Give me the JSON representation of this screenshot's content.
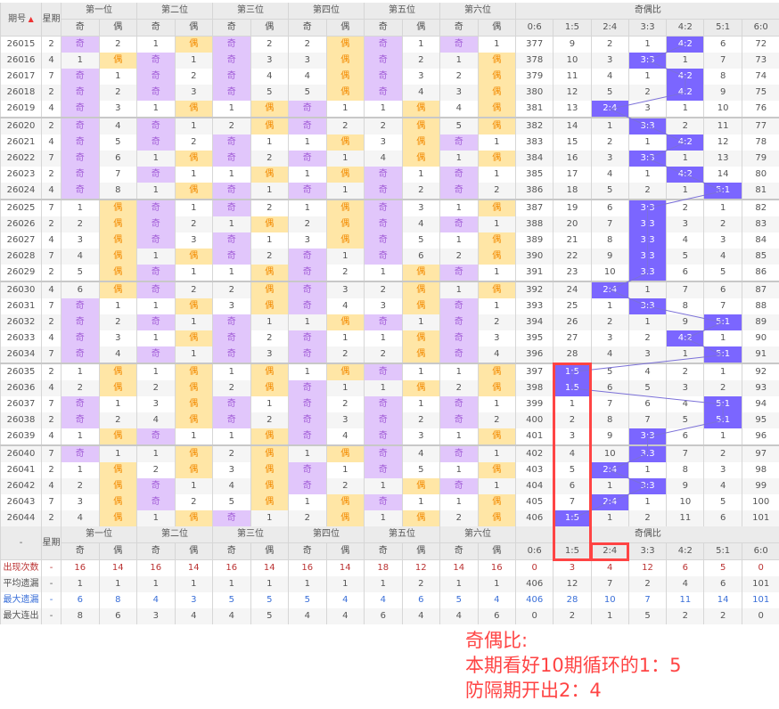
{
  "header": {
    "issue": "期号",
    "weekday": "星期",
    "positions": [
      "第一位",
      "第二位",
      "第三位",
      "第四位",
      "第五位",
      "第六位"
    ],
    "odd": "奇",
    "even": "偶",
    "ratio_title": "奇偶比",
    "ratios": [
      "0:6",
      "1:5",
      "2:4",
      "3:3",
      "4:2",
      "5:1",
      "6:0"
    ],
    "footer_first": "-"
  },
  "colors": {
    "odd_bg": "#e1c6fb",
    "even_bg": "#ffe6a6",
    "hit_bg": "#7b66ff",
    "annotation": "#ff4444"
  },
  "rows": [
    {
      "id": "26015",
      "wd": "2",
      "pos": [
        "奇",
        "2",
        "1",
        "偶",
        "奇",
        "2",
        "2",
        "偶",
        "奇",
        "1",
        "奇",
        "1"
      ],
      "ratio": [
        "377",
        "9",
        "2",
        "1",
        "4:2",
        "6",
        "72"
      ]
    },
    {
      "id": "26016",
      "wd": "4",
      "pos": [
        "1",
        "偶",
        "奇",
        "1",
        "奇",
        "3",
        "3",
        "偶",
        "奇",
        "2",
        "1",
        "偶"
      ],
      "ratio": [
        "378",
        "10",
        "3",
        "3:3",
        "1",
        "7",
        "73"
      ]
    },
    {
      "id": "26017",
      "wd": "7",
      "pos": [
        "奇",
        "1",
        "奇",
        "2",
        "奇",
        "4",
        "4",
        "偶",
        "奇",
        "3",
        "2",
        "偶"
      ],
      "ratio": [
        "379",
        "11",
        "4",
        "1",
        "4:2",
        "8",
        "74"
      ]
    },
    {
      "id": "26018",
      "wd": "2",
      "pos": [
        "奇",
        "2",
        "奇",
        "3",
        "奇",
        "5",
        "5",
        "偶",
        "奇",
        "4",
        "3",
        "偶"
      ],
      "ratio": [
        "380",
        "12",
        "5",
        "2",
        "4:2",
        "9",
        "75"
      ]
    },
    {
      "id": "26019",
      "wd": "4",
      "pos": [
        "奇",
        "3",
        "1",
        "偶",
        "1",
        "偶",
        "奇",
        "1",
        "1",
        "偶",
        "4",
        "偶"
      ],
      "ratio": [
        "381",
        "13",
        "2:4",
        "3",
        "1",
        "10",
        "76"
      ]
    },
    {
      "id": "26020",
      "wd": "2",
      "pos": [
        "奇",
        "4",
        "奇",
        "1",
        "2",
        "偶",
        "奇",
        "2",
        "2",
        "偶",
        "5",
        "偶"
      ],
      "ratio": [
        "382",
        "14",
        "1",
        "3:3",
        "2",
        "11",
        "77"
      ]
    },
    {
      "id": "26021",
      "wd": "4",
      "pos": [
        "奇",
        "5",
        "奇",
        "2",
        "奇",
        "1",
        "1",
        "偶",
        "3",
        "偶",
        "奇",
        "1"
      ],
      "ratio": [
        "383",
        "15",
        "2",
        "1",
        "4:2",
        "12",
        "78"
      ]
    },
    {
      "id": "26022",
      "wd": "7",
      "pos": [
        "奇",
        "6",
        "1",
        "偶",
        "奇",
        "2",
        "奇",
        "1",
        "4",
        "偶",
        "1",
        "偶"
      ],
      "ratio": [
        "384",
        "16",
        "3",
        "3:3",
        "1",
        "13",
        "79"
      ]
    },
    {
      "id": "26023",
      "wd": "2",
      "pos": [
        "奇",
        "7",
        "奇",
        "1",
        "1",
        "偶",
        "1",
        "偶",
        "奇",
        "1",
        "奇",
        "1"
      ],
      "ratio": [
        "385",
        "17",
        "4",
        "1",
        "4:2",
        "14",
        "80"
      ]
    },
    {
      "id": "26024",
      "wd": "4",
      "pos": [
        "奇",
        "8",
        "1",
        "偶",
        "奇",
        "1",
        "奇",
        "1",
        "奇",
        "2",
        "奇",
        "2"
      ],
      "ratio": [
        "386",
        "18",
        "5",
        "2",
        "1",
        "5:1",
        "81"
      ]
    },
    {
      "id": "26025",
      "wd": "7",
      "pos": [
        "1",
        "偶",
        "奇",
        "1",
        "奇",
        "2",
        "1",
        "偶",
        "奇",
        "3",
        "1",
        "偶"
      ],
      "ratio": [
        "387",
        "19",
        "6",
        "3:3",
        "2",
        "1",
        "82"
      ]
    },
    {
      "id": "26026",
      "wd": "2",
      "pos": [
        "2",
        "偶",
        "奇",
        "2",
        "1",
        "偶",
        "2",
        "偶",
        "奇",
        "4",
        "奇",
        "1"
      ],
      "ratio": [
        "388",
        "20",
        "7",
        "3:3",
        "3",
        "2",
        "83"
      ]
    },
    {
      "id": "26027",
      "wd": "4",
      "pos": [
        "3",
        "偶",
        "奇",
        "3",
        "奇",
        "1",
        "3",
        "偶",
        "奇",
        "5",
        "1",
        "偶"
      ],
      "ratio": [
        "389",
        "21",
        "8",
        "3:3",
        "4",
        "3",
        "84"
      ]
    },
    {
      "id": "26028",
      "wd": "7",
      "pos": [
        "4",
        "偶",
        "1",
        "偶",
        "奇",
        "2",
        "奇",
        "1",
        "奇",
        "6",
        "2",
        "偶"
      ],
      "ratio": [
        "390",
        "22",
        "9",
        "3:3",
        "5",
        "4",
        "85"
      ]
    },
    {
      "id": "26029",
      "wd": "2",
      "pos": [
        "5",
        "偶",
        "奇",
        "1",
        "1",
        "偶",
        "奇",
        "2",
        "1",
        "偶",
        "奇",
        "1"
      ],
      "ratio": [
        "391",
        "23",
        "10",
        "3:3",
        "6",
        "5",
        "86"
      ]
    },
    {
      "id": "26030",
      "wd": "4",
      "pos": [
        "6",
        "偶",
        "奇",
        "2",
        "2",
        "偶",
        "奇",
        "3",
        "2",
        "偶",
        "1",
        "偶"
      ],
      "ratio": [
        "392",
        "24",
        "2:4",
        "1",
        "7",
        "6",
        "87"
      ]
    },
    {
      "id": "26031",
      "wd": "7",
      "pos": [
        "奇",
        "1",
        "1",
        "偶",
        "3",
        "偶",
        "奇",
        "4",
        "3",
        "偶",
        "奇",
        "1"
      ],
      "ratio": [
        "393",
        "25",
        "1",
        "3:3",
        "8",
        "7",
        "88"
      ]
    },
    {
      "id": "26032",
      "wd": "2",
      "pos": [
        "奇",
        "2",
        "奇",
        "1",
        "奇",
        "1",
        "1",
        "偶",
        "奇",
        "1",
        "奇",
        "2"
      ],
      "ratio": [
        "394",
        "26",
        "2",
        "1",
        "9",
        "5:1",
        "89"
      ]
    },
    {
      "id": "26033",
      "wd": "4",
      "pos": [
        "奇",
        "3",
        "1",
        "偶",
        "奇",
        "2",
        "奇",
        "1",
        "1",
        "偶",
        "奇",
        "3"
      ],
      "ratio": [
        "395",
        "27",
        "3",
        "2",
        "4:2",
        "1",
        "90"
      ]
    },
    {
      "id": "26034",
      "wd": "7",
      "pos": [
        "奇",
        "4",
        "奇",
        "1",
        "奇",
        "3",
        "奇",
        "2",
        "2",
        "偶",
        "奇",
        "4"
      ],
      "ratio": [
        "396",
        "28",
        "4",
        "3",
        "1",
        "5:1",
        "91"
      ]
    },
    {
      "id": "26035",
      "wd": "2",
      "pos": [
        "1",
        "偶",
        "1",
        "偶",
        "1",
        "偶",
        "1",
        "偶",
        "奇",
        "1",
        "1",
        "偶"
      ],
      "ratio": [
        "397",
        "1:5",
        "5",
        "4",
        "2",
        "1",
        "92"
      ]
    },
    {
      "id": "26036",
      "wd": "4",
      "pos": [
        "2",
        "偶",
        "2",
        "偶",
        "2",
        "偶",
        "奇",
        "1",
        "1",
        "偶",
        "2",
        "偶"
      ],
      "ratio": [
        "398",
        "1:5",
        "6",
        "5",
        "3",
        "2",
        "93"
      ]
    },
    {
      "id": "26037",
      "wd": "7",
      "pos": [
        "奇",
        "1",
        "3",
        "偶",
        "奇",
        "1",
        "奇",
        "2",
        "奇",
        "1",
        "奇",
        "1"
      ],
      "ratio": [
        "399",
        "1",
        "7",
        "6",
        "4",
        "5:1",
        "94"
      ]
    },
    {
      "id": "26038",
      "wd": "2",
      "pos": [
        "奇",
        "2",
        "4",
        "偶",
        "奇",
        "2",
        "奇",
        "3",
        "奇",
        "2",
        "奇",
        "2"
      ],
      "ratio": [
        "400",
        "2",
        "8",
        "7",
        "5",
        "5:1",
        "95"
      ]
    },
    {
      "id": "26039",
      "wd": "4",
      "pos": [
        "1",
        "偶",
        "奇",
        "1",
        "1",
        "偶",
        "奇",
        "4",
        "奇",
        "3",
        "1",
        "偶"
      ],
      "ratio": [
        "401",
        "3",
        "9",
        "3:3",
        "6",
        "1",
        "96"
      ]
    },
    {
      "id": "26040",
      "wd": "7",
      "pos": [
        "奇",
        "1",
        "1",
        "偶",
        "2",
        "偶",
        "1",
        "偶",
        "奇",
        "4",
        "奇",
        "1"
      ],
      "ratio": [
        "402",
        "4",
        "10",
        "3:3",
        "7",
        "2",
        "97"
      ]
    },
    {
      "id": "26041",
      "wd": "2",
      "pos": [
        "1",
        "偶",
        "2",
        "偶",
        "3",
        "偶",
        "奇",
        "1",
        "奇",
        "5",
        "1",
        "偶"
      ],
      "ratio": [
        "403",
        "5",
        "2:4",
        "1",
        "8",
        "3",
        "98"
      ]
    },
    {
      "id": "26042",
      "wd": "4",
      "pos": [
        "2",
        "偶",
        "奇",
        "1",
        "4",
        "偶",
        "奇",
        "2",
        "1",
        "偶",
        "奇",
        "1"
      ],
      "ratio": [
        "404",
        "6",
        "1",
        "3:3",
        "9",
        "4",
        "99"
      ]
    },
    {
      "id": "26043",
      "wd": "7",
      "pos": [
        "3",
        "偶",
        "奇",
        "2",
        "5",
        "偶",
        "1",
        "偶",
        "奇",
        "1",
        "1",
        "偶"
      ],
      "ratio": [
        "405",
        "7",
        "2:4",
        "1",
        "10",
        "5",
        "100"
      ]
    },
    {
      "id": "26044",
      "wd": "2",
      "pos": [
        "4",
        "偶",
        "1",
        "偶",
        "奇",
        "1",
        "2",
        "偶",
        "1",
        "偶",
        "2",
        "偶"
      ],
      "ratio": [
        "406",
        "1:5",
        "1",
        "2",
        "11",
        "6",
        "101"
      ]
    }
  ],
  "stats": [
    {
      "label": "出现次数",
      "wd": "-",
      "values": [
        "16",
        "14",
        "16",
        "14",
        "16",
        "14",
        "16",
        "14",
        "18",
        "12",
        "14",
        "16",
        "0",
        "3",
        "4",
        "12",
        "6",
        "5",
        "0"
      ]
    },
    {
      "label": "平均遗漏",
      "wd": "-",
      "values": [
        "1",
        "1",
        "1",
        "1",
        "1",
        "1",
        "1",
        "1",
        "1",
        "2",
        "1",
        "1",
        "406",
        "12",
        "7",
        "2",
        "4",
        "6",
        "101"
      ]
    },
    {
      "label": "最大遗漏",
      "wd": "-",
      "values": [
        "6",
        "8",
        "4",
        "3",
        "5",
        "5",
        "5",
        "4",
        "4",
        "6",
        "5",
        "4",
        "406",
        "28",
        "10",
        "7",
        "11",
        "14",
        "101"
      ]
    },
    {
      "label": "最大连出",
      "wd": "-",
      "values": [
        "8",
        "6",
        "3",
        "4",
        "4",
        "5",
        "4",
        "4",
        "6",
        "4",
        "4",
        "6",
        "0",
        "2",
        "1",
        "5",
        "2",
        "2",
        "0"
      ]
    }
  ],
  "annotation": {
    "line1": "奇偶比:",
    "line2": "本期看好10期循环的1：5",
    "line3": "防隔期开出2：4"
  }
}
